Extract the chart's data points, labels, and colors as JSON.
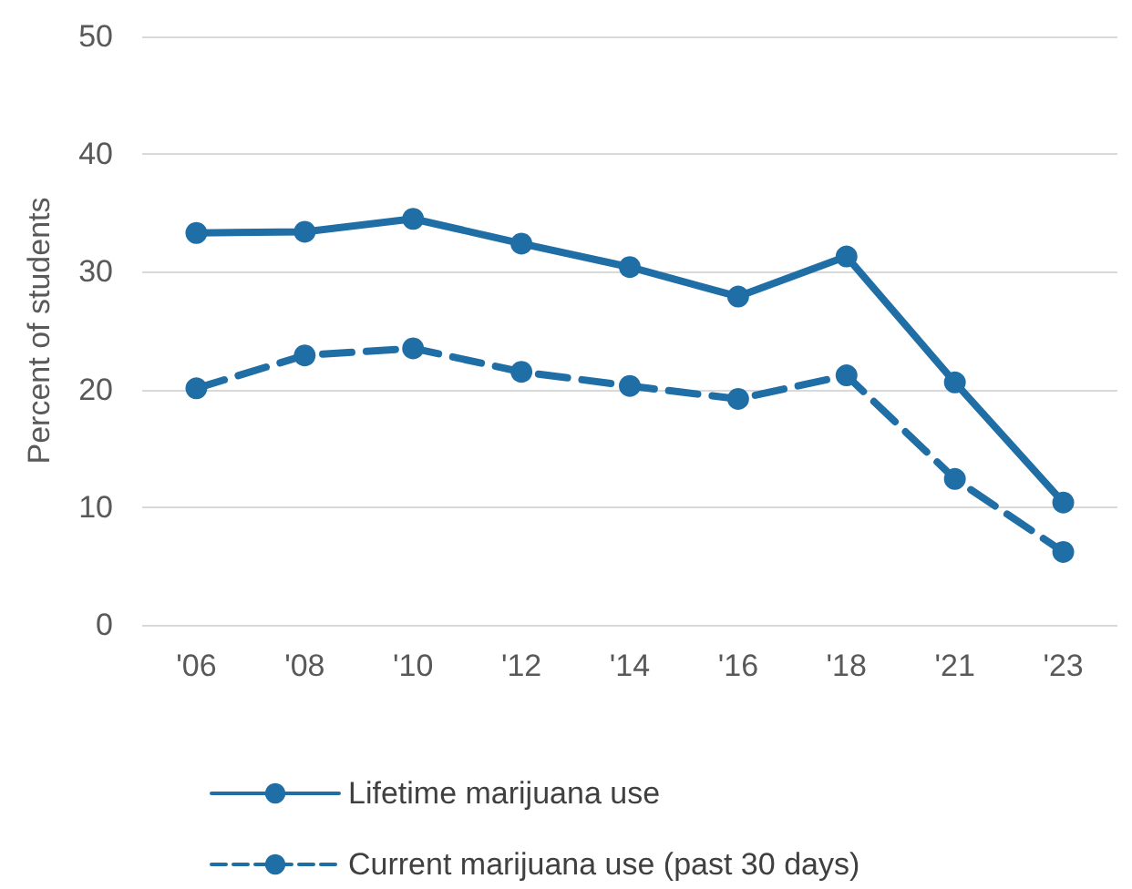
{
  "chart_data": {
    "type": "line",
    "ylabel": "Percent of students",
    "categories": [
      "'06",
      "'08",
      "'10",
      "'12",
      "'14",
      "'16",
      "'18",
      "'21",
      "'23"
    ],
    "series": [
      {
        "name": "Lifetime marijuana use",
        "color": "#1f6ea6",
        "line_style": "solid",
        "values": [
          33.3,
          33.4,
          34.5,
          32.4,
          30.4,
          27.9,
          31.3,
          20.6,
          10.4
        ]
      },
      {
        "name": "Current marijuana use (past 30 days)",
        "color": "#1f6ea6",
        "line_style": "dashed",
        "values": [
          20.1,
          22.9,
          23.5,
          21.5,
          20.3,
          19.2,
          21.2,
          12.4,
          6.2
        ]
      }
    ],
    "ylim": [
      0,
      50
    ],
    "yticks": [
      0,
      10,
      20,
      30,
      40,
      50
    ],
    "grid": "y",
    "legend": "bottom left",
    "marker": "circle"
  }
}
